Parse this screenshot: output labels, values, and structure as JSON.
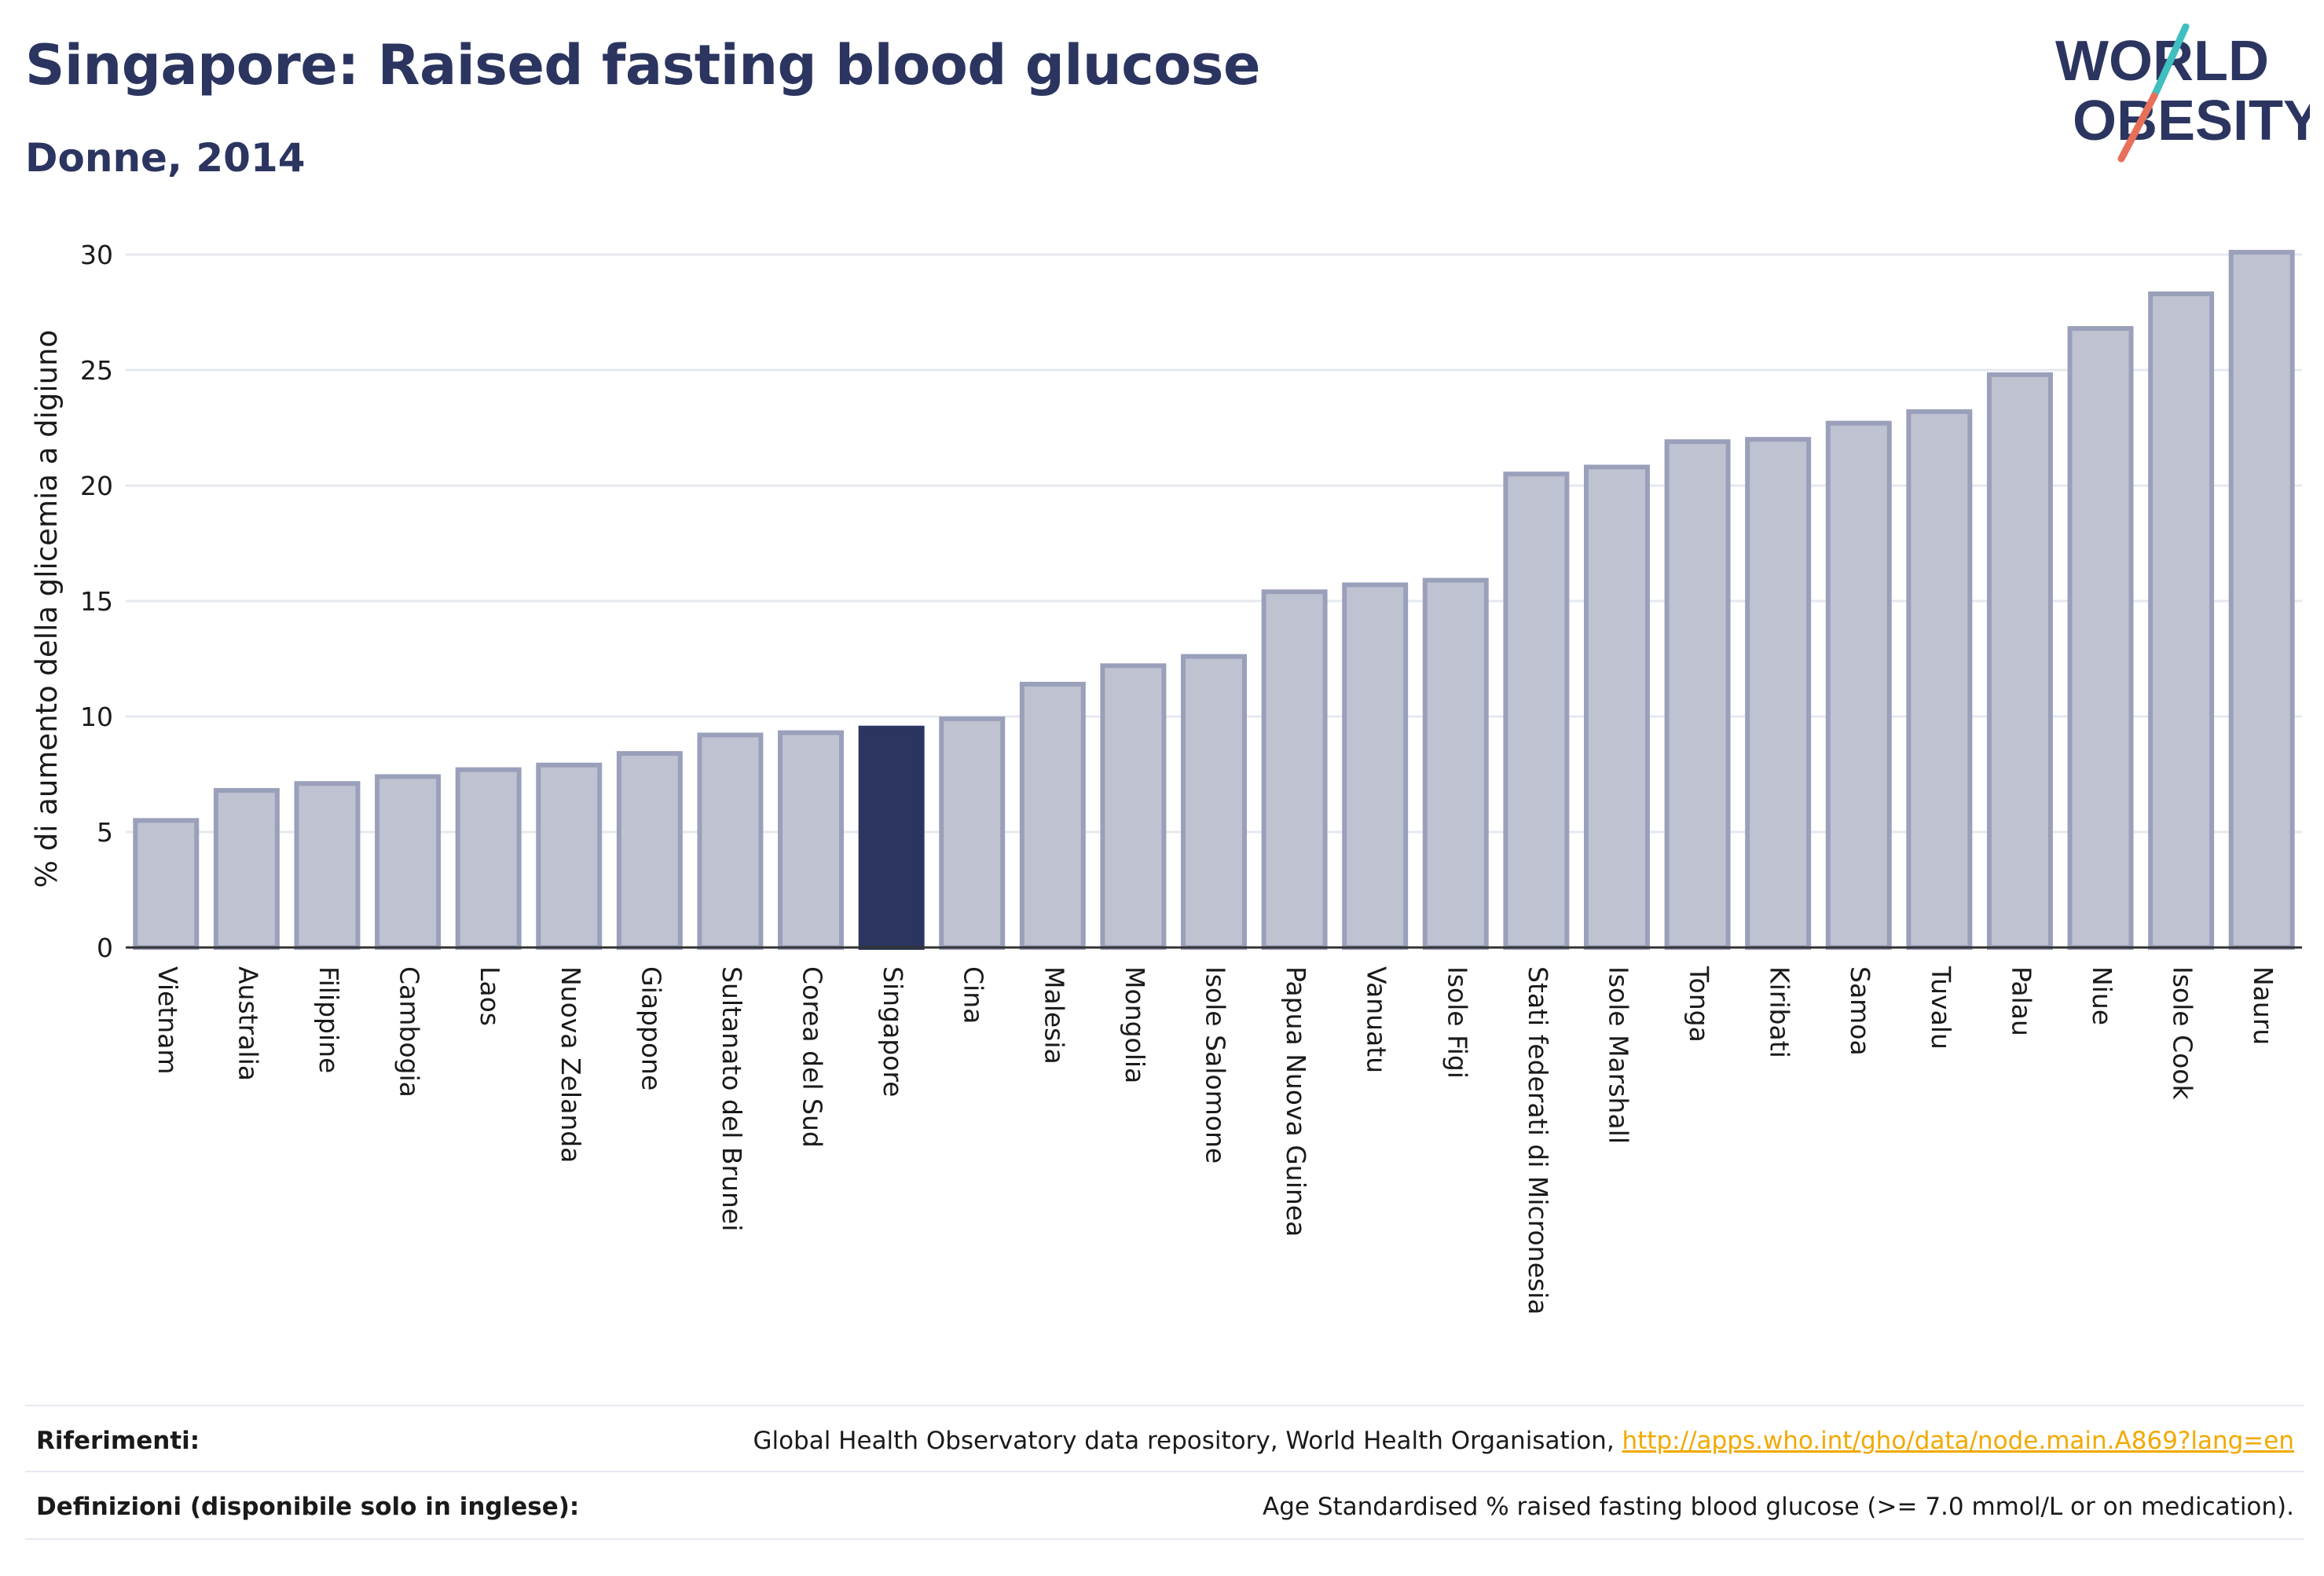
{
  "header": {
    "title": "Singapore: Raised fasting blood glucose",
    "subtitle": "Donne, 2014"
  },
  "logo": {
    "line1": "WORLD",
    "line2": "OBESITY",
    "colors": {
      "text": "#2b3560",
      "slash_top": "#3fbfbf",
      "slash_bottom": "#e8705a"
    }
  },
  "colors": {
    "bar_default": "#bfc2d1",
    "bar_border": "#9aa0ba",
    "bar_highlight": "#2b3560",
    "grid": "#e6e8f0",
    "axis": "#333333",
    "link": "#f2a900"
  },
  "chart_data": {
    "type": "bar",
    "title": "Singapore: Raised fasting blood glucose",
    "subtitle": "Donne, 2014",
    "ylabel": "% di aumento della glicemia a digiuno",
    "xlabel": "",
    "ylim": [
      0,
      30
    ],
    "yticks": [
      0,
      5,
      10,
      15,
      20,
      25,
      30
    ],
    "grid": true,
    "highlight": "Singapore",
    "categories": [
      "Vietnam",
      "Australia",
      "Filippine",
      "Cambogia",
      "Laos",
      "Nuova Zelanda",
      "Giappone",
      "Sultanato del Brunei",
      "Corea del Sud",
      "Singapore",
      "Cina",
      "Malesia",
      "Mongolia",
      "Isole Salomone",
      "Papua Nuova Guinea",
      "Vanuatu",
      "Isole Figi",
      "Stati federati di Micronesia",
      "Isole Marshall",
      "Tonga",
      "Kiribati",
      "Samoa",
      "Tuvalu",
      "Palau",
      "Niue",
      "Isole Cook",
      "Nauru"
    ],
    "values": [
      5.5,
      6.8,
      7.1,
      7.4,
      7.7,
      7.9,
      8.4,
      9.2,
      9.3,
      9.5,
      9.9,
      11.4,
      12.2,
      12.6,
      15.4,
      15.7,
      15.9,
      20.5,
      20.8,
      21.9,
      22.0,
      22.7,
      23.2,
      24.8,
      26.8,
      28.3,
      30.1
    ]
  },
  "footer": {
    "references_label": "Riferimenti:",
    "references_text": "Global Health Observatory data repository, World Health Organisation, ",
    "references_link": "http://apps.who.int/gho/data/node.main.A869?lang=en",
    "definitions_label": "Definizioni (disponibile solo in inglese):",
    "definitions_text": "Age Standardised % raised fasting blood glucose (>= 7.0 mmol/L or on medication)."
  }
}
